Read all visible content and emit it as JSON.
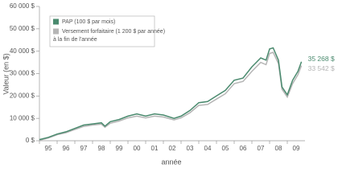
{
  "chart_data": {
    "type": "line",
    "y_label": "Valeur (en $)",
    "x_label": "année",
    "x": [
      1995.0,
      1995.5,
      1996.0,
      1996.5,
      1997.0,
      1997.5,
      1998.0,
      1998.5,
      1998.7,
      1999.0,
      1999.5,
      2000.0,
      2000.5,
      2001.0,
      2001.5,
      2002.0,
      2002.6,
      2003.0,
      2003.5,
      2004.0,
      2004.5,
      2005.0,
      2005.5,
      2006.0,
      2006.5,
      2007.0,
      2007.5,
      2007.8,
      2008.0,
      2008.2,
      2008.5,
      2008.7,
      2009.0,
      2009.3,
      2009.6,
      2009.8
    ],
    "series": [
      {
        "name": "PAP (100 $ par mois)",
        "color": "#4a8a6e",
        "values": [
          500,
          1500,
          3000,
          4000,
          5500,
          7000,
          7500,
          8000,
          6500,
          8500,
          9500,
          11000,
          12000,
          11000,
          12000,
          11500,
          10000,
          11000,
          13500,
          17000,
          17500,
          20000,
          22500,
          27000,
          28000,
          33000,
          37000,
          36000,
          41000,
          41500,
          36000,
          24000,
          20500,
          27000,
          31000,
          35268
        ],
        "value_labels": [
          null,
          null,
          null,
          null,
          null,
          null,
          null,
          null,
          null,
          null,
          null,
          null,
          null,
          null,
          null,
          null,
          null,
          null,
          null,
          null,
          null,
          null,
          null,
          null,
          null,
          null,
          null,
          null,
          null,
          null,
          null,
          null,
          null,
          null,
          null,
          "35 268 $"
        ]
      },
      {
        "name": "Versement forfaitaire (1 200 $ par année) à la fin de l'année",
        "color": "#b5b5b5",
        "values": [
          200,
          1200,
          2700,
          3600,
          5000,
          6400,
          7000,
          7400,
          6000,
          7800,
          8800,
          10200,
          11000,
          10200,
          11000,
          10600,
          9300,
          10200,
          12500,
          15800,
          16200,
          18600,
          21000,
          25500,
          26500,
          31000,
          35000,
          34000,
          39000,
          39500,
          34500,
          23000,
          19500,
          25500,
          29500,
          33542
        ],
        "value_labels": [
          null,
          null,
          null,
          null,
          null,
          null,
          null,
          null,
          null,
          null,
          null,
          null,
          null,
          null,
          null,
          null,
          null,
          null,
          null,
          null,
          null,
          null,
          null,
          null,
          null,
          null,
          null,
          null,
          null,
          null,
          null,
          null,
          null,
          null,
          null,
          "33 542 $"
        ]
      }
    ],
    "xlim": [
      1995,
      2010
    ],
    "xticks": [
      {
        "value": 1995,
        "label": "95"
      },
      {
        "value": 1996,
        "label": "96"
      },
      {
        "value": 1997,
        "label": "97"
      },
      {
        "value": 1998,
        "label": "98"
      },
      {
        "value": 1999,
        "label": "99"
      },
      {
        "value": 2000,
        "label": "00"
      },
      {
        "value": 2001,
        "label": "01"
      },
      {
        "value": 2002,
        "label": "02"
      },
      {
        "value": 2003,
        "label": "03"
      },
      {
        "value": 2004,
        "label": "04"
      },
      {
        "value": 2005,
        "label": "05"
      },
      {
        "value": 2006,
        "label": "06"
      },
      {
        "value": 2007,
        "label": "07"
      },
      {
        "value": 2008,
        "label": "08"
      },
      {
        "value": 2009,
        "label": "09"
      }
    ],
    "ylim": [
      0,
      60000
    ],
    "yticks": [
      {
        "value": 0,
        "label": "0 $"
      },
      {
        "value": 10000,
        "label": "10 000 $"
      },
      {
        "value": 20000,
        "label": "20 000 $"
      },
      {
        "value": 30000,
        "label": "30 000 $"
      },
      {
        "value": 40000,
        "label": "40 000 $"
      },
      {
        "value": 50000,
        "label": "50 000 $"
      },
      {
        "value": 60000,
        "label": "60 000 $"
      }
    ]
  }
}
